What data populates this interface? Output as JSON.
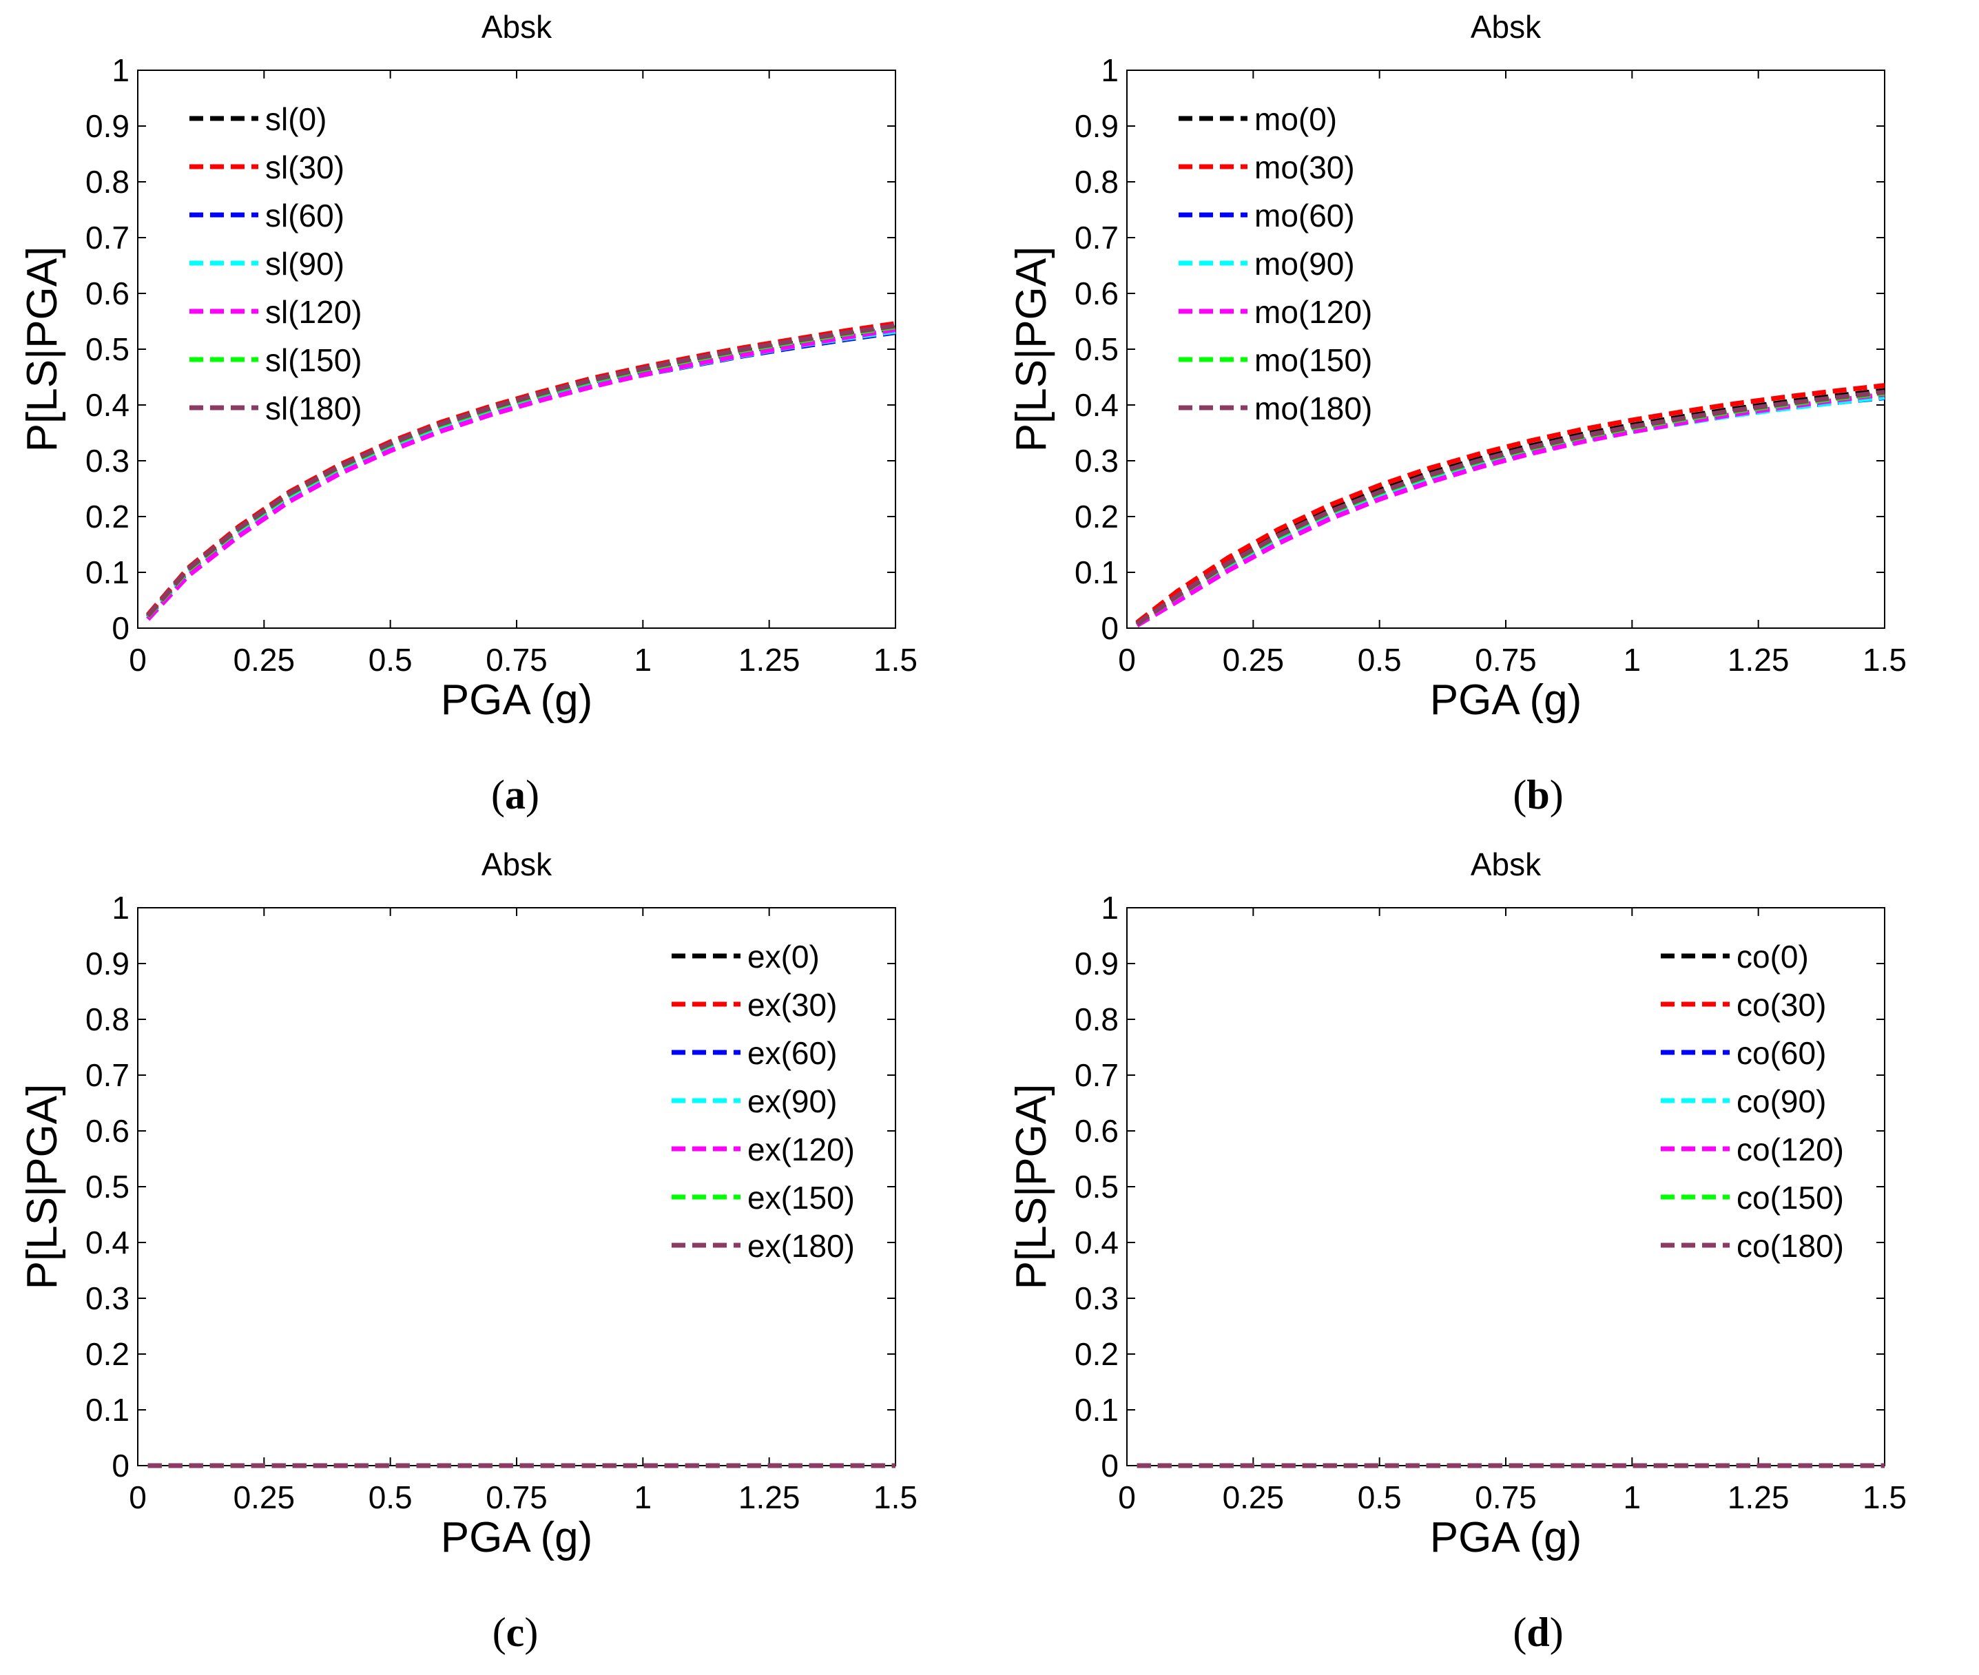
{
  "figure": {
    "captions": [
      "a",
      "b",
      "c",
      "d"
    ]
  },
  "chart_data": [
    {
      "type": "line",
      "title": "Absk",
      "xlabel": "PGA (g)",
      "ylabel": "P[LS|PGA]",
      "xlim": [
        0,
        1.5
      ],
      "ylim": [
        0,
        1
      ],
      "xticks": [
        "0",
        "0.25",
        "0.5",
        "0.75",
        "1",
        "1.25",
        "1.5"
      ],
      "yticks": [
        "0",
        "0.1",
        "0.2",
        "0.3",
        "0.4",
        "0.5",
        "0.6",
        "0.7",
        "0.8",
        "0.9",
        "1"
      ],
      "legend_position": "top-left",
      "x": [
        0.02,
        0.1,
        0.2,
        0.3,
        0.4,
        0.5,
        0.6,
        0.7,
        0.8,
        0.9,
        1.0,
        1.1,
        1.2,
        1.3,
        1.4,
        1.5
      ],
      "series": [
        {
          "name": "sl(0)",
          "color": "#000000",
          "values": [
            0.022,
            0.105,
            0.178,
            0.24,
            0.289,
            0.329,
            0.364,
            0.392,
            0.418,
            0.442,
            0.461,
            0.479,
            0.496,
            0.511,
            0.525,
            0.538
          ]
        },
        {
          "name": "sl(30)",
          "color": "#ff0000",
          "values": [
            0.024,
            0.108,
            0.182,
            0.244,
            0.293,
            0.334,
            0.369,
            0.398,
            0.424,
            0.448,
            0.468,
            0.486,
            0.503,
            0.518,
            0.533,
            0.546
          ]
        },
        {
          "name": "sl(60)",
          "color": "#0000ff",
          "values": [
            0.02,
            0.102,
            0.175,
            0.236,
            0.285,
            0.325,
            0.359,
            0.387,
            0.412,
            0.435,
            0.454,
            0.471,
            0.488,
            0.503,
            0.517,
            0.53
          ]
        },
        {
          "name": "sl(90)",
          "color": "#00ffff",
          "values": [
            0.018,
            0.098,
            0.17,
            0.232,
            0.281,
            0.321,
            0.356,
            0.385,
            0.41,
            0.434,
            0.454,
            0.472,
            0.489,
            0.505,
            0.519,
            0.532
          ]
        },
        {
          "name": "sl(120)",
          "color": "#ff00ff",
          "values": [
            0.016,
            0.094,
            0.165,
            0.227,
            0.277,
            0.318,
            0.353,
            0.383,
            0.409,
            0.433,
            0.454,
            0.473,
            0.49,
            0.506,
            0.521,
            0.535
          ]
        },
        {
          "name": "sl(150)",
          "color": "#00ff00",
          "values": [
            0.021,
            0.104,
            0.177,
            0.239,
            0.288,
            0.329,
            0.364,
            0.393,
            0.419,
            0.443,
            0.463,
            0.481,
            0.498,
            0.513,
            0.527,
            0.54
          ]
        },
        {
          "name": "sl(180)",
          "color": "#8b3a62",
          "values": [
            0.022,
            0.106,
            0.179,
            0.241,
            0.29,
            0.331,
            0.366,
            0.395,
            0.421,
            0.445,
            0.465,
            0.483,
            0.5,
            0.515,
            0.529,
            0.542
          ]
        }
      ]
    },
    {
      "type": "line",
      "title": "Absk",
      "xlabel": "PGA (g)",
      "ylabel": "P[LS|PGA]",
      "xlim": [
        0,
        1.5
      ],
      "ylim": [
        0,
        1
      ],
      "xticks": [
        "0",
        "0.25",
        "0.5",
        "0.75",
        "1",
        "1.25",
        "1.5"
      ],
      "yticks": [
        "0",
        "0.1",
        "0.2",
        "0.3",
        "0.4",
        "0.5",
        "0.6",
        "0.7",
        "0.8",
        "0.9",
        "1"
      ],
      "legend_position": "top-left",
      "x": [
        0.02,
        0.1,
        0.2,
        0.3,
        0.4,
        0.5,
        0.6,
        0.7,
        0.8,
        0.9,
        1.0,
        1.1,
        1.2,
        1.3,
        1.4,
        1.5
      ],
      "series": [
        {
          "name": "mo(0)",
          "color": "#000000",
          "values": [
            0.008,
            0.06,
            0.118,
            0.168,
            0.211,
            0.247,
            0.278,
            0.304,
            0.327,
            0.347,
            0.364,
            0.379,
            0.393,
            0.405,
            0.416,
            0.426
          ]
        },
        {
          "name": "mo(30)",
          "color": "#ff0000",
          "values": [
            0.01,
            0.066,
            0.126,
            0.177,
            0.22,
            0.256,
            0.287,
            0.313,
            0.336,
            0.356,
            0.373,
            0.388,
            0.402,
            0.414,
            0.425,
            0.435
          ]
        },
        {
          "name": "mo(60)",
          "color": "#0000ff",
          "values": [
            0.007,
            0.056,
            0.112,
            0.161,
            0.203,
            0.238,
            0.268,
            0.294,
            0.316,
            0.336,
            0.353,
            0.368,
            0.382,
            0.394,
            0.404,
            0.413
          ]
        },
        {
          "name": "mo(90)",
          "color": "#00ffff",
          "values": [
            0.006,
            0.052,
            0.108,
            0.157,
            0.199,
            0.235,
            0.266,
            0.292,
            0.315,
            0.335,
            0.352,
            0.367,
            0.381,
            0.393,
            0.404,
            0.414
          ]
        },
        {
          "name": "mo(120)",
          "color": "#ff00ff",
          "values": [
            0.005,
            0.048,
            0.103,
            0.152,
            0.195,
            0.231,
            0.262,
            0.289,
            0.313,
            0.334,
            0.352,
            0.368,
            0.383,
            0.396,
            0.408,
            0.419
          ]
        },
        {
          "name": "mo(150)",
          "color": "#00ff00",
          "values": [
            0.007,
            0.057,
            0.114,
            0.164,
            0.206,
            0.242,
            0.273,
            0.299,
            0.322,
            0.342,
            0.359,
            0.374,
            0.388,
            0.4,
            0.411,
            0.421
          ]
        },
        {
          "name": "mo(180)",
          "color": "#8b3a62",
          "values": [
            0.007,
            0.058,
            0.116,
            0.166,
            0.208,
            0.244,
            0.275,
            0.301,
            0.324,
            0.344,
            0.361,
            0.376,
            0.39,
            0.402,
            0.413,
            0.423
          ]
        }
      ]
    },
    {
      "type": "line",
      "title": "Absk",
      "xlabel": "PGA (g)",
      "ylabel": "P[LS|PGA]",
      "xlim": [
        0,
        1.5
      ],
      "ylim": [
        0,
        1
      ],
      "xticks": [
        "0",
        "0.25",
        "0.5",
        "0.75",
        "1",
        "1.25",
        "1.5"
      ],
      "yticks": [
        "0",
        "0.1",
        "0.2",
        "0.3",
        "0.4",
        "0.5",
        "0.6",
        "0.7",
        "0.8",
        "0.9",
        "1"
      ],
      "legend_position": "top-right",
      "x": [
        0.02,
        1.5
      ],
      "series": [
        {
          "name": "ex(0)",
          "color": "#000000",
          "values": [
            0,
            0
          ]
        },
        {
          "name": "ex(30)",
          "color": "#ff0000",
          "values": [
            0,
            0
          ]
        },
        {
          "name": "ex(60)",
          "color": "#0000ff",
          "values": [
            0,
            0
          ]
        },
        {
          "name": "ex(90)",
          "color": "#00ffff",
          "values": [
            0,
            0
          ]
        },
        {
          "name": "ex(120)",
          "color": "#ff00ff",
          "values": [
            0,
            0
          ]
        },
        {
          "name": "ex(150)",
          "color": "#00ff00",
          "values": [
            0,
            0
          ]
        },
        {
          "name": "ex(180)",
          "color": "#8b3a62",
          "values": [
            0,
            0
          ]
        }
      ]
    },
    {
      "type": "line",
      "title": "Absk",
      "xlabel": "PGA (g)",
      "ylabel": "P[LS|PGA]",
      "xlim": [
        0,
        1.5
      ],
      "ylim": [
        0,
        1
      ],
      "xticks": [
        "0",
        "0.25",
        "0.5",
        "0.75",
        "1",
        "1.25",
        "1.5"
      ],
      "yticks": [
        "0",
        "0.1",
        "0.2",
        "0.3",
        "0.4",
        "0.5",
        "0.6",
        "0.7",
        "0.8",
        "0.9",
        "1"
      ],
      "legend_position": "top-right",
      "x": [
        0.02,
        1.5
      ],
      "series": [
        {
          "name": "co(0)",
          "color": "#000000",
          "values": [
            0,
            0
          ]
        },
        {
          "name": "co(30)",
          "color": "#ff0000",
          "values": [
            0,
            0
          ]
        },
        {
          "name": "co(60)",
          "color": "#0000ff",
          "values": [
            0,
            0
          ]
        },
        {
          "name": "co(90)",
          "color": "#00ffff",
          "values": [
            0,
            0
          ]
        },
        {
          "name": "co(120)",
          "color": "#ff00ff",
          "values": [
            0,
            0
          ]
        },
        {
          "name": "co(150)",
          "color": "#00ff00",
          "values": [
            0,
            0
          ]
        },
        {
          "name": "co(180)",
          "color": "#8b3a62",
          "values": [
            0,
            0
          ]
        }
      ]
    }
  ]
}
